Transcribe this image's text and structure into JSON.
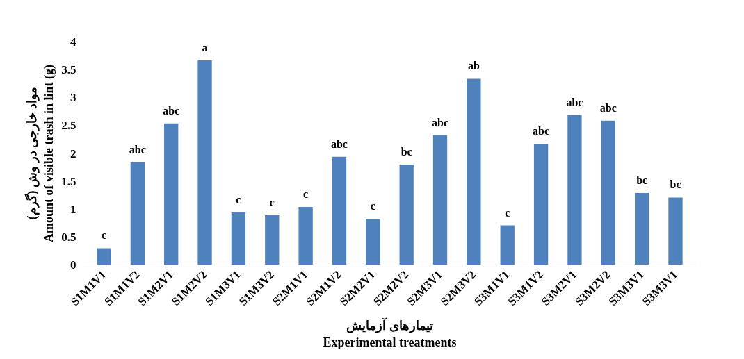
{
  "chart_data": {
    "type": "bar",
    "xlabel": "تیمارهای آزمایش\nExperimental treatments",
    "ylabel": "مواد خارجی در وش (گرم)\nAmount of visible trash in lint (g)",
    "categories": [
      "S1M1V1",
      "S1M1V2",
      "S1M2V1",
      "S1M2V2",
      "S1M3V1",
      "S1M3V2",
      "S2M1V1",
      "S2M1V2",
      "S2M2V1",
      "S2M2V2",
      "S2M3V1",
      "S2M3V2",
      "S3M1V1",
      "S3M1V2",
      "S3M2V1",
      "S3M2V2",
      "S3M3V1",
      "S3M3V1"
    ],
    "values": [
      0.3,
      1.84,
      2.54,
      3.67,
      0.94,
      0.89,
      1.04,
      1.94,
      0.83,
      1.8,
      2.33,
      3.34,
      0.71,
      2.17,
      2.69,
      2.59,
      1.29,
      1.21
    ],
    "value_labels": [
      "c",
      "abc",
      "abc",
      "a",
      "c",
      "c",
      "c",
      "abc",
      "c",
      "bc",
      "abc",
      "ab",
      "c",
      "abc",
      "abc",
      "abc",
      "bc",
      "bc"
    ],
    "color": "#4f81bd",
    "ylim": [
      0,
      4
    ],
    "yticks": [
      0,
      0.5,
      1,
      1.5,
      2,
      2.5,
      3,
      3.5,
      4
    ],
    "grid": false
  }
}
